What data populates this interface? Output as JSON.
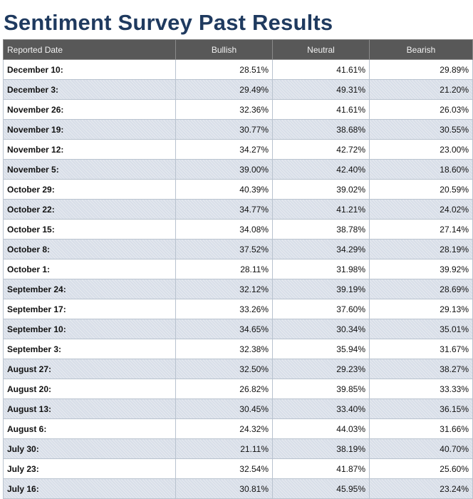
{
  "title": "Sentiment Survey Past Results",
  "columns": [
    "Reported Date",
    "Bullish",
    "Neutral",
    "Bearish"
  ],
  "rows": [
    {
      "date": "December 10:",
      "bullish": "28.51%",
      "neutral": "41.61%",
      "bearish": "29.89%"
    },
    {
      "date": "December 3:",
      "bullish": "29.49%",
      "neutral": "49.31%",
      "bearish": "21.20%"
    },
    {
      "date": "November 26:",
      "bullish": "32.36%",
      "neutral": "41.61%",
      "bearish": "26.03%"
    },
    {
      "date": "November 19:",
      "bullish": "30.77%",
      "neutral": "38.68%",
      "bearish": "30.55%"
    },
    {
      "date": "November 12:",
      "bullish": "34.27%",
      "neutral": "42.72%",
      "bearish": "23.00%"
    },
    {
      "date": "November 5:",
      "bullish": "39.00%",
      "neutral": "42.40%",
      "bearish": "18.60%"
    },
    {
      "date": "October 29:",
      "bullish": "40.39%",
      "neutral": "39.02%",
      "bearish": "20.59%"
    },
    {
      "date": "October 22:",
      "bullish": "34.77%",
      "neutral": "41.21%",
      "bearish": "24.02%"
    },
    {
      "date": "October 15:",
      "bullish": "34.08%",
      "neutral": "38.78%",
      "bearish": "27.14%"
    },
    {
      "date": "October 8:",
      "bullish": "37.52%",
      "neutral": "34.29%",
      "bearish": "28.19%"
    },
    {
      "date": "October 1:",
      "bullish": "28.11%",
      "neutral": "31.98%",
      "bearish": "39.92%"
    },
    {
      "date": "September 24:",
      "bullish": "32.12%",
      "neutral": "39.19%",
      "bearish": "28.69%"
    },
    {
      "date": "September 17:",
      "bullish": "33.26%",
      "neutral": "37.60%",
      "bearish": "29.13%"
    },
    {
      "date": "September 10:",
      "bullish": "34.65%",
      "neutral": "30.34%",
      "bearish": "35.01%"
    },
    {
      "date": "September 3:",
      "bullish": "32.38%",
      "neutral": "35.94%",
      "bearish": "31.67%"
    },
    {
      "date": "August 27:",
      "bullish": "32.50%",
      "neutral": "29.23%",
      "bearish": "38.27%"
    },
    {
      "date": "August 20:",
      "bullish": "26.82%",
      "neutral": "39.85%",
      "bearish": "33.33%"
    },
    {
      "date": "August 13:",
      "bullish": "30.45%",
      "neutral": "33.40%",
      "bearish": "36.15%"
    },
    {
      "date": "August 6:",
      "bullish": "24.32%",
      "neutral": "44.03%",
      "bearish": "31.66%"
    },
    {
      "date": "July 30:",
      "bullish": "21.11%",
      "neutral": "38.19%",
      "bearish": "40.70%"
    },
    {
      "date": "July 23:",
      "bullish": "32.54%",
      "neutral": "41.87%",
      "bearish": "25.60%"
    },
    {
      "date": "July 16:",
      "bullish": "30.81%",
      "neutral": "45.95%",
      "bearish": "23.24%"
    }
  ],
  "colors": {
    "title": "#1f3a5f",
    "header_bg": "#585858",
    "header_text": "#f2f2f2",
    "alt_row_bg": "#d8dee8",
    "border": "#b9c3cf"
  }
}
